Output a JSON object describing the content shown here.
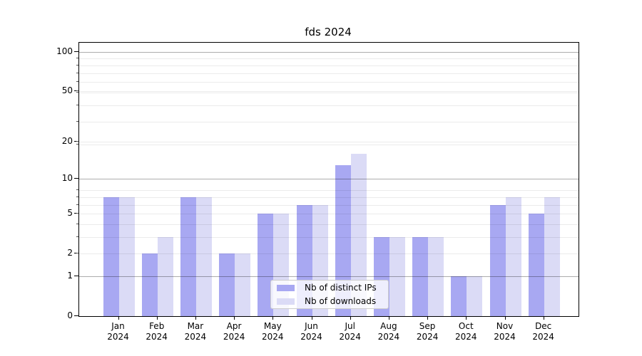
{
  "title": "fds 2024",
  "chart_data": {
    "type": "bar",
    "title": "fds 2024",
    "x_months": [
      "Jan",
      "Feb",
      "Mar",
      "Apr",
      "May",
      "Jun",
      "Jul",
      "Aug",
      "Sep",
      "Oct",
      "Nov",
      "Dec"
    ],
    "x_year": "2024",
    "series": [
      {
        "name": "Nb of distinct IPs",
        "key": "distinct-ips",
        "color": "#a8a8f2",
        "values": [
          7,
          2,
          7,
          2,
          5,
          6,
          13,
          3,
          3,
          1,
          6,
          5
        ]
      },
      {
        "name": "Nb of downloads",
        "key": "downloads",
        "color": "#dbdbf6",
        "values": [
          7,
          3,
          7,
          2,
          5,
          6,
          16,
          3,
          3,
          1,
          7,
          7
        ]
      }
    ],
    "y_scale": "log10(1+x)",
    "ylim": [
      0,
      118
    ],
    "y_tick_labels": [
      0,
      1,
      2,
      5,
      10,
      20,
      50,
      100
    ],
    "y_major_gridlines": [
      1,
      10,
      100
    ],
    "y_minor_gridlines": [
      2,
      3,
      4,
      5,
      6,
      7,
      8,
      19,
      20,
      29,
      39,
      49,
      50,
      59,
      69,
      79,
      89
    ],
    "grid": true,
    "legend_position": "lower center"
  }
}
